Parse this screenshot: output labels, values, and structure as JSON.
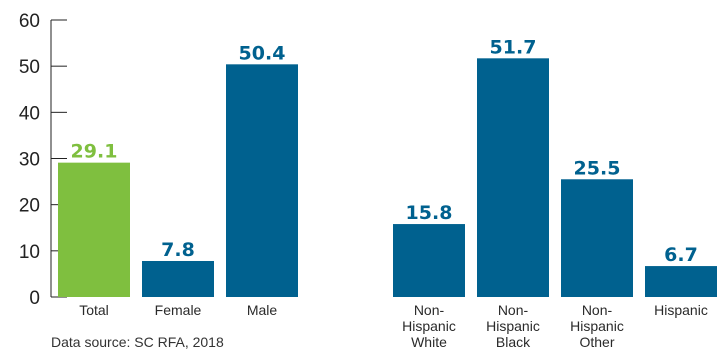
{
  "chart_data": {
    "type": "bar",
    "categories": [
      [
        "Total"
      ],
      [
        "Female"
      ],
      [
        "Male"
      ],
      [
        "Non-",
        "Hispanic",
        "White"
      ],
      [
        "Non-",
        "Hispanic",
        "Black"
      ],
      [
        "Non-",
        "Hispanic",
        "Other"
      ],
      [
        "Hispanic"
      ]
    ],
    "values": [
      29.1,
      7.8,
      50.4,
      15.8,
      51.7,
      25.5,
      6.7
    ],
    "value_labels": [
      "29.1",
      "7.8",
      "50.4",
      "15.8",
      "51.7",
      "25.5",
      "6.7"
    ],
    "yticks": [
      "0",
      "10",
      "20",
      "30",
      "40",
      "50",
      "60"
    ],
    "ylim": [
      0,
      60
    ],
    "grid": false,
    "colors": [
      "#7fbf3f",
      "#00618f",
      "#00618f",
      "#00618f",
      "#00618f",
      "#00618f",
      "#00618f"
    ],
    "source": "Data source: SC RFA, 2018"
  }
}
